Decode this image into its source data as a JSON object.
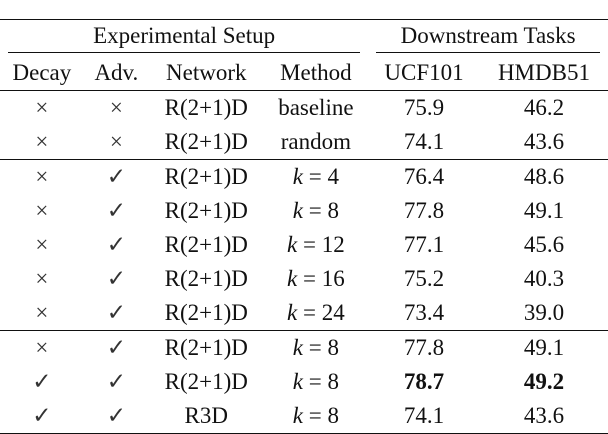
{
  "header": {
    "groups": [
      "Experimental Setup",
      "Downstream Tasks"
    ],
    "columns": [
      "Decay",
      "Adv.",
      "Network",
      "Method",
      "UCF101",
      "HMDB51"
    ]
  },
  "table": {
    "rows": [
      [
        "×",
        "×",
        "R(2+1)D",
        "baseline",
        "75.9",
        "46.2"
      ],
      [
        "×",
        "×",
        "R(2+1)D",
        "random",
        "74.1",
        "43.6"
      ],
      [
        "×",
        "✓",
        "R(2+1)D",
        "k = 4",
        "76.4",
        "48.6"
      ],
      [
        "×",
        "✓",
        "R(2+1)D",
        "k = 8",
        "77.8",
        "49.1"
      ],
      [
        "×",
        "✓",
        "R(2+1)D",
        "k = 12",
        "77.1",
        "45.6"
      ],
      [
        "×",
        "✓",
        "R(2+1)D",
        "k = 16",
        "75.2",
        "40.3"
      ],
      [
        "×",
        "✓",
        "R(2+1)D",
        "k = 24",
        "73.4",
        "39.0"
      ],
      [
        "×",
        "✓",
        "R(2+1)D",
        "k = 8",
        "77.8",
        "49.1"
      ],
      [
        "✓",
        "✓",
        "R(2+1)D",
        "k = 8",
        "78.7",
        "49.2"
      ],
      [
        "✓",
        "✓",
        "R3D",
        "k = 8",
        "74.1",
        "43.6"
      ]
    ]
  }
}
